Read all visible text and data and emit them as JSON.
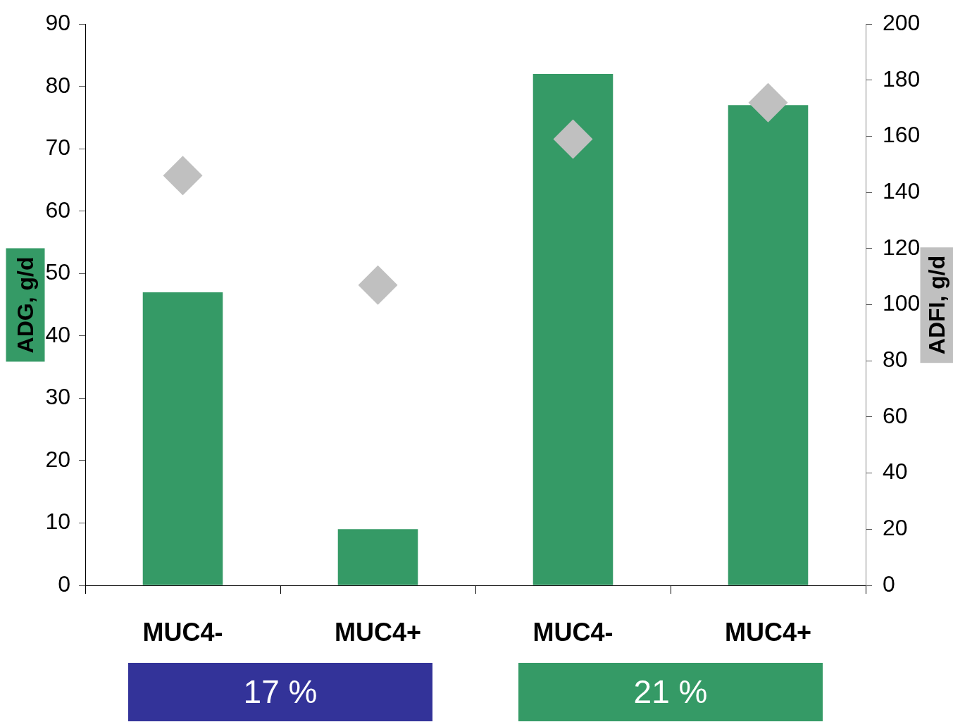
{
  "chart_data": {
    "type": "bar",
    "categories": [
      "MUC4-",
      "MUC4+",
      "MUC4-",
      "MUC4+"
    ],
    "series": [
      {
        "color": "#359a66",
        "values": [
          47,
          9,
          82,
          77
        ]
      },
      {
        "type": "scatter",
        "axis": "y2",
        "color": "#c0c0c0",
        "values": [
          146,
          107,
          159,
          172
        ]
      }
    ],
    "ylabel": "ADG, g/d",
    "y2label": "ADFI, g/d",
    "ylim": [
      0,
      90
    ],
    "yticks": [
      0,
      10,
      20,
      30,
      40,
      50,
      60,
      70,
      80,
      90
    ],
    "y2lim": [
      0,
      200
    ],
    "y2ticks": [
      0,
      20,
      40,
      60,
      80,
      100,
      120,
      140,
      160,
      180,
      200
    ],
    "marker": "diamond",
    "annotations": [
      "17 %",
      "21 %"
    ]
  }
}
